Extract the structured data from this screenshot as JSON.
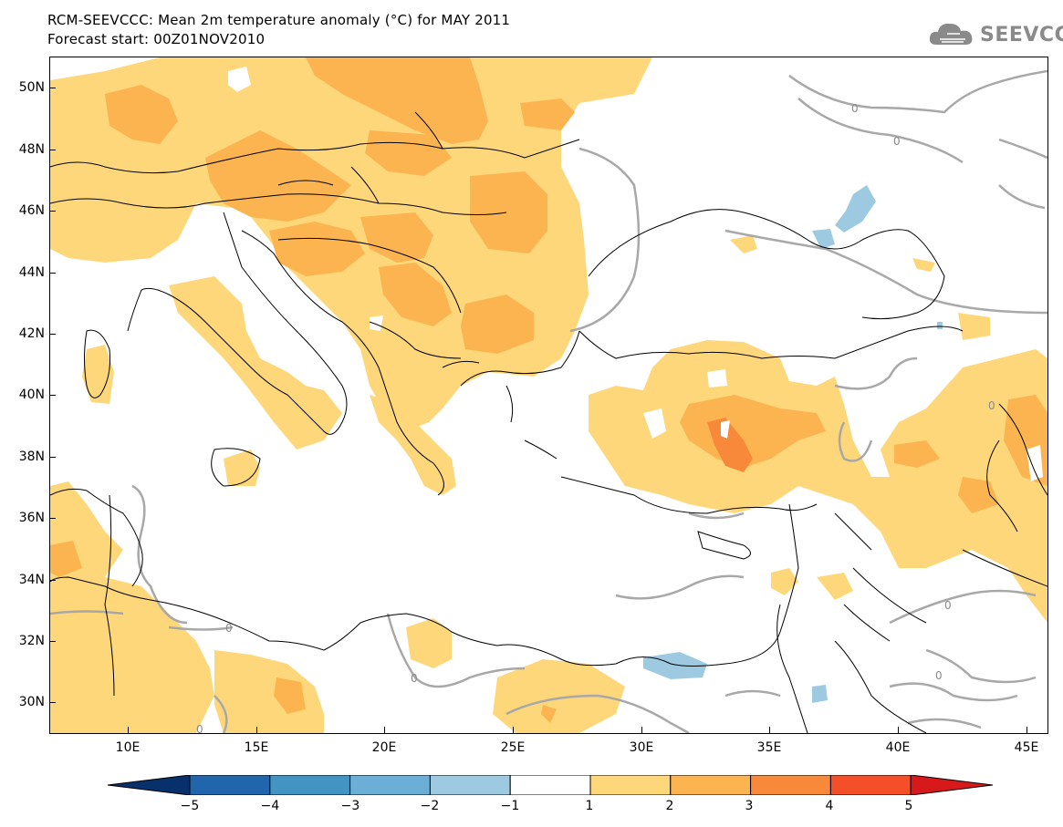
{
  "header": {
    "title_line1": "RCM-SEEVCCC: Mean 2m temperature anomaly (°C) for MAY 2011",
    "title_line2": "Forecast start: 00Z01NOV2010",
    "logo_text": "SEEVCCC"
  },
  "map": {
    "lat_labels": [
      "50N",
      "48N",
      "46N",
      "44N",
      "42N",
      "40N",
      "38N",
      "36N",
      "34N",
      "32N",
      "30N"
    ],
    "lon_labels": [
      "10E",
      "15E",
      "20E",
      "25E",
      "30E",
      "35E",
      "40E",
      "45E"
    ],
    "contour_label": "0"
  },
  "colorbar": {
    "labels": [
      "−5",
      "−4",
      "−3",
      "−2",
      "−1",
      "1",
      "2",
      "3",
      "4",
      "5"
    ],
    "colors": [
      "#08306b",
      "#2166ac",
      "#4393c3",
      "#6baed6",
      "#9ecae1",
      "#ffffff",
      "#fdd77a",
      "#fbb450",
      "#f8893a",
      "#f3502a",
      "#d7191c"
    ]
  },
  "colors": {
    "anomaly_1_2": "#fdd77a",
    "anomaly_2_3": "#fbb450",
    "anomaly_3_4": "#f8893a",
    "anomaly_neg_1_2": "#9ecae1",
    "contour_gray": "#a8a8a8",
    "border": "#000000"
  }
}
